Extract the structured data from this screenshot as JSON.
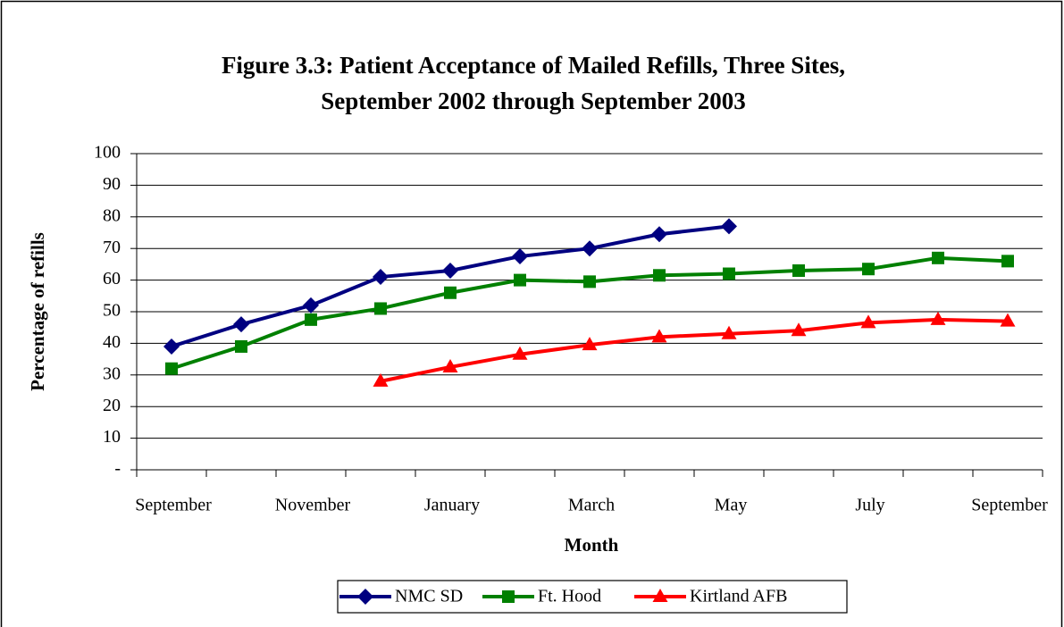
{
  "chart_data": {
    "type": "line",
    "title": [
      "Figure 3.3: Patient Acceptance of Mailed Refills, Three Sites,",
      "September 2002 through September 2003"
    ],
    "x_label": "Month",
    "y_label": "Percentage of refills",
    "categories": [
      "September",
      null,
      "November",
      null,
      "January",
      null,
      "March",
      null,
      "May",
      null,
      "July",
      null,
      "September"
    ],
    "series": [
      {
        "name": "NMC SD",
        "color": "#000080",
        "marker": "diamond",
        "values": [
          39,
          46,
          52,
          61,
          63,
          67.5,
          70,
          74.5,
          77,
          null,
          null,
          null,
          null
        ]
      },
      {
        "name": "Ft. Hood",
        "color": "#008000",
        "marker": "square",
        "values": [
          32,
          39,
          47.5,
          51,
          56,
          60,
          59.5,
          61.5,
          62,
          63,
          63.5,
          67,
          66
        ]
      },
      {
        "name": "Kirtland AFB",
        "color": "#ff0000",
        "marker": "triangle",
        "values": [
          null,
          null,
          null,
          28,
          32.5,
          36.5,
          39.5,
          42,
          43,
          44,
          46.5,
          47.5,
          47
        ]
      }
    ],
    "ylim": [
      0,
      100
    ],
    "yticks": [
      {
        "value": 0,
        "label": "-"
      },
      10,
      20,
      30,
      40,
      50,
      60,
      70,
      80,
      90,
      100
    ],
    "grid": true,
    "legend": "bottom"
  }
}
